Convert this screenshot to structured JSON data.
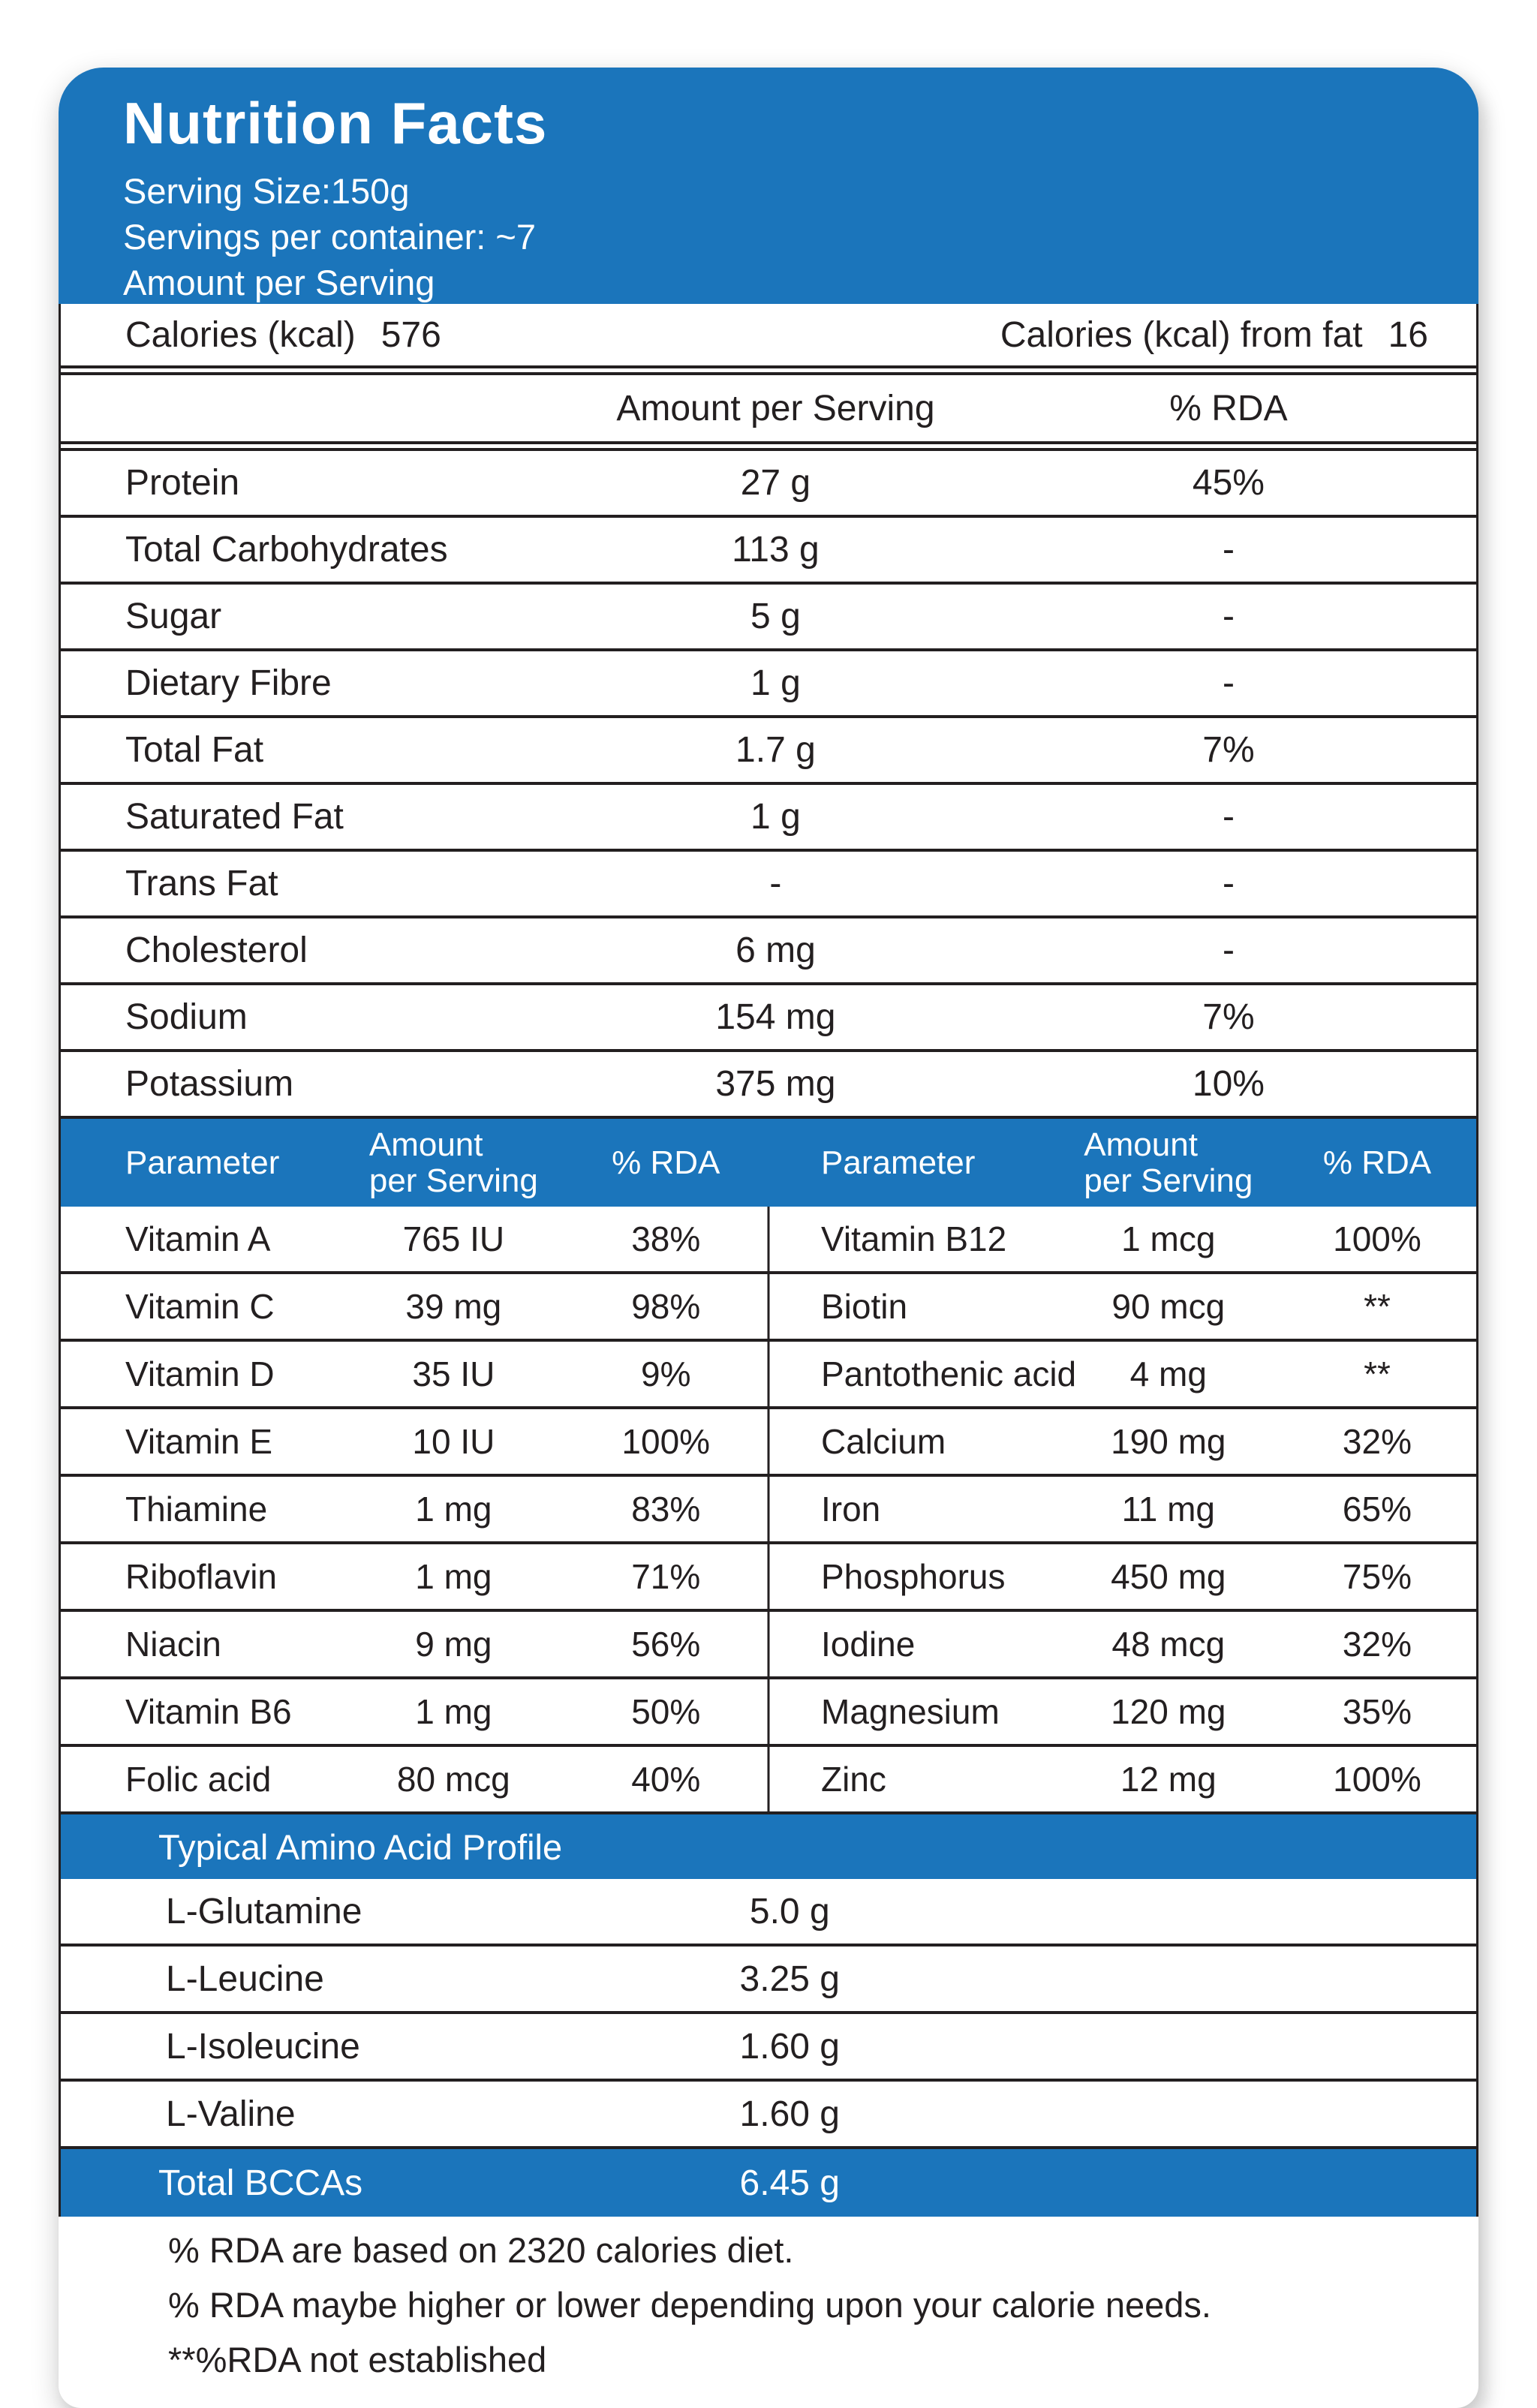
{
  "colors": {
    "accent_blue": "#1B75BB",
    "text_dark": "#231F20",
    "band_text": "#FFFFFF"
  },
  "header": {
    "title": "Nutrition Facts",
    "serving_size": "Serving Size:150g",
    "servings_per_container": "Servings per container: ~7",
    "amount_per_serving": "Amount per Serving"
  },
  "calories": {
    "label": "Calories (kcal)",
    "value": "576",
    "fat_label": "Calories (kcal) from fat",
    "fat_value": "16"
  },
  "main_table": {
    "col_amount": "Amount per Serving",
    "col_rda": "% RDA",
    "rows": [
      {
        "label": "Protein",
        "amount": "27 g",
        "rda": "45%"
      },
      {
        "label": "Total Carbohydrates",
        "amount": "113 g",
        "rda": "-"
      },
      {
        "label": "Sugar",
        "amount": "5 g",
        "rda": "-"
      },
      {
        "label": "Dietary Fibre",
        "amount": "1 g",
        "rda": "-"
      },
      {
        "label": "Total Fat",
        "amount": "1.7 g",
        "rda": "7%"
      },
      {
        "label": "Saturated Fat",
        "amount": "1 g",
        "rda": "-"
      },
      {
        "label": "Trans Fat",
        "amount": "-",
        "rda": "-"
      },
      {
        "label": "Cholesterol",
        "amount": "6 mg",
        "rda": "-"
      },
      {
        "label": "Sodium",
        "amount": "154 mg",
        "rda": "7%"
      },
      {
        "label": "Potassium",
        "amount": "375 mg",
        "rda": "10%"
      }
    ]
  },
  "vitamin_table": {
    "headers": {
      "parameter": "Parameter",
      "amount_line1": "Amount",
      "amount_line2": "per Serving",
      "rda": "% RDA"
    },
    "left_rows": [
      {
        "label": "Vitamin A",
        "amount": "765 IU",
        "rda": "38%"
      },
      {
        "label": "Vitamin C",
        "amount": "39 mg",
        "rda": "98%"
      },
      {
        "label": "Vitamin D",
        "amount": "35 IU",
        "rda": "9%"
      },
      {
        "label": "Vitamin E",
        "amount": "10 IU",
        "rda": "100%"
      },
      {
        "label": "Thiamine",
        "amount": "1 mg",
        "rda": "83%"
      },
      {
        "label": "Riboflavin",
        "amount": "1 mg",
        "rda": "71%"
      },
      {
        "label": "Niacin",
        "amount": "9 mg",
        "rda": "56%"
      },
      {
        "label": "Vitamin B6",
        "amount": "1 mg",
        "rda": "50%"
      },
      {
        "label": "Folic acid",
        "amount": "80 mcg",
        "rda": "40%"
      }
    ],
    "right_rows": [
      {
        "label": "Vitamin B12",
        "amount": "1 mcg",
        "rda": "100%"
      },
      {
        "label": "Biotin",
        "amount": "90 mcg",
        "rda": "**"
      },
      {
        "label": "Pantothenic acid",
        "amount": "4 mg",
        "rda": "**"
      },
      {
        "label": "Calcium",
        "amount": "190 mg",
        "rda": "32%"
      },
      {
        "label": "Iron",
        "amount": "11 mg",
        "rda": "65%"
      },
      {
        "label": "Phosphorus",
        "amount": "450 mg",
        "rda": "75%"
      },
      {
        "label": "Iodine",
        "amount": "48 mcg",
        "rda": "32%"
      },
      {
        "label": "Magnesium",
        "amount": "120 mg",
        "rda": "35%"
      },
      {
        "label": "Zinc",
        "amount": "12 mg",
        "rda": "100%"
      }
    ]
  },
  "amino_table": {
    "title": "Typical Amino Acid Profile",
    "rows": [
      {
        "label": "L-Glutamine",
        "value": "5.0 g"
      },
      {
        "label": "L-Leucine",
        "value": "3.25 g"
      },
      {
        "label": "L-Isoleucine",
        "value": "1.60 g"
      },
      {
        "label": "L-Valine",
        "value": "1.60 g"
      }
    ],
    "total_label": "Total BCCAs",
    "total_value": "6.45 g"
  },
  "footnotes": {
    "line1": "% RDA are based on 2320 calories diet.",
    "line2": "% RDA maybe higher or lower depending upon your calorie needs.",
    "line3": "**%RDA not established"
  }
}
